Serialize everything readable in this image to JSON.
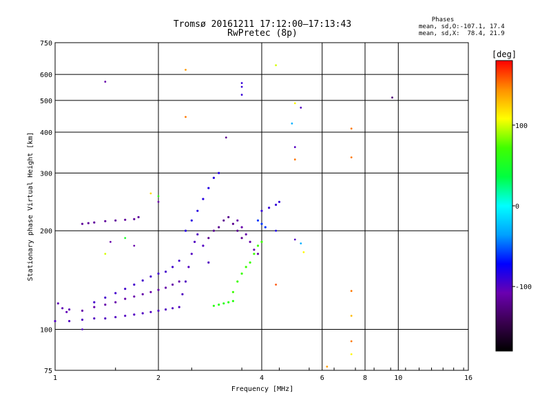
{
  "chart_data": {
    "type": "scatter",
    "title": "Tromsø 20161211 17:12:00–17:13:43",
    "subtitle": "RwPretec (8p)",
    "xlabel": "Frequency [MHz]",
    "ylabel": "Stationary phase Virtual Height [km]",
    "xscale": "log",
    "yscale": "log",
    "xlim": [
      1,
      16
    ],
    "ylim": [
      75,
      750
    ],
    "x_ticks": [
      1,
      2,
      4,
      6,
      8,
      10,
      16
    ],
    "y_ticks": [
      75,
      100,
      200,
      300,
      400,
      500,
      600,
      750
    ],
    "grid": true,
    "legend": {
      "title": "Phases",
      "line1": "mean, sd,O:-107.1, 17.4",
      "line2": "mean, sd,X:  78.4, 21.9"
    },
    "colorbar": {
      "label": "[deg]",
      "ticks": [
        100,
        0,
        -100
      ],
      "range": [
        -180,
        180
      ],
      "colors": [
        "#000000",
        "#3a0050",
        "#6a00b0",
        "#0000ff",
        "#00a0ff",
        "#00ffff",
        "#00ff40",
        "#40ff00",
        "#ffff00",
        "#ff9000",
        "#ff0000"
      ]
    },
    "traces": [
      {
        "name": "",
        "phase": -100,
        "f": [
          1.0,
          1.1,
          1.2,
          1.3,
          1.4,
          1.5,
          1.6,
          1.7,
          1.8,
          1.9,
          2.0,
          2.1,
          2.2,
          2.3
        ],
        "h": [
          106,
          106,
          107,
          108,
          108,
          109,
          110,
          111,
          112,
          113,
          114,
          115,
          116,
          117
        ]
      },
      {
        "name": "",
        "phase": -110,
        "f": [
          1.2,
          1.3,
          1.4,
          1.5,
          1.6,
          1.7,
          1.8,
          1.9,
          2.0,
          2.1,
          2.2,
          2.3
        ],
        "h": [
          114,
          117,
          119,
          121,
          124,
          126,
          128,
          130,
          132,
          134,
          137,
          140
        ]
      },
      {
        "name": "",
        "phase": -95,
        "f": [
          1.3,
          1.4,
          1.5,
          1.6,
          1.7,
          1.8,
          1.9,
          2.0,
          2.1,
          2.2,
          2.3
        ],
        "h": [
          121,
          125,
          129,
          133,
          137,
          141,
          145,
          148,
          150,
          155,
          162
        ]
      },
      {
        "name": "",
        "phase": -105,
        "f": [
          1.02,
          1.05,
          1.08,
          1.1
        ],
        "h": [
          120,
          116,
          113,
          115
        ]
      },
      {
        "name": "",
        "phase": -115,
        "f": [
          1.2,
          1.25,
          1.3,
          1.4,
          1.5,
          1.6,
          1.7,
          1.75
        ],
        "h": [
          210,
          211,
          212,
          214,
          215,
          216,
          217,
          220
        ]
      },
      {
        "name": "",
        "phase": -100,
        "f": [
          2.35,
          2.4,
          2.45,
          2.5,
          2.55,
          2.6,
          2.7,
          2.8
        ],
        "h": [
          128,
          140,
          155,
          170,
          185,
          195,
          180,
          160
        ]
      },
      {
        "name": "",
        "phase": -85,
        "f": [
          2.4,
          2.5,
          2.6,
          2.7,
          2.8,
          2.9,
          3.0
        ],
        "h": [
          200,
          215,
          230,
          250,
          270,
          290,
          300
        ]
      },
      {
        "name": "",
        "phase": -120,
        "f": [
          2.8,
          2.9,
          3.0,
          3.1,
          3.2,
          3.3,
          3.4,
          3.5
        ],
        "h": [
          190,
          200,
          205,
          215,
          220,
          210,
          200,
          190
        ]
      },
      {
        "name": "",
        "phase": -110,
        "f": [
          3.4,
          3.5,
          3.6,
          3.7,
          3.8,
          3.9
        ],
        "h": [
          215,
          205,
          195,
          185,
          175,
          170
        ]
      },
      {
        "name": "",
        "phase": 60,
        "f": [
          2.9,
          3.0,
          3.1,
          3.2,
          3.3
        ],
        "h": [
          118,
          119,
          120,
          121,
          122
        ]
      },
      {
        "name": "",
        "phase": 70,
        "f": [
          3.3,
          3.4,
          3.5,
          3.6,
          3.7,
          3.8,
          3.9,
          4.0
        ],
        "h": [
          130,
          140,
          148,
          155,
          160,
          170,
          180,
          185
        ]
      },
      {
        "name": "",
        "phase": -90,
        "f": [
          4.0,
          4.2,
          4.4,
          4.5
        ],
        "h": [
          230,
          235,
          240,
          245
        ]
      },
      {
        "name": "",
        "phase": -60,
        "f": [
          3.9,
          4.0,
          4.1
        ],
        "h": [
          215,
          210,
          205
        ]
      }
    ],
    "isolated_points": [
      {
        "f": 1.4,
        "h": 570,
        "phase": -110
      },
      {
        "f": 2.4,
        "h": 620,
        "phase": 140
      },
      {
        "f": 2.4,
        "h": 445,
        "phase": 150
      },
      {
        "f": 3.15,
        "h": 385,
        "phase": -120
      },
      {
        "f": 3.5,
        "h": 565,
        "phase": -90
      },
      {
        "f": 3.5,
        "h": 550,
        "phase": -90
      },
      {
        "f": 3.5,
        "h": 520,
        "phase": -90
      },
      {
        "f": 4.4,
        "h": 640,
        "phase": 100
      },
      {
        "f": 5.0,
        "h": 490,
        "phase": 110
      },
      {
        "f": 5.2,
        "h": 475,
        "phase": -100
      },
      {
        "f": 4.9,
        "h": 425,
        "phase": -30
      },
      {
        "f": 5.0,
        "h": 360,
        "phase": -100
      },
      {
        "f": 5.0,
        "h": 330,
        "phase": 150
      },
      {
        "f": 7.3,
        "h": 410,
        "phase": 150
      },
      {
        "f": 7.3,
        "h": 335,
        "phase": 150
      },
      {
        "f": 9.6,
        "h": 510,
        "phase": -130
      },
      {
        "f": 4.4,
        "h": 137,
        "phase": 160
      },
      {
        "f": 7.3,
        "h": 131,
        "phase": 150
      },
      {
        "f": 7.3,
        "h": 110,
        "phase": 130
      },
      {
        "f": 7.3,
        "h": 92,
        "phase": 150
      },
      {
        "f": 7.3,
        "h": 84,
        "phase": 110
      },
      {
        "f": 6.2,
        "h": 77,
        "phase": 140
      },
      {
        "f": 5.0,
        "h": 188,
        "phase": -100
      },
      {
        "f": 5.2,
        "h": 183,
        "phase": -30
      },
      {
        "f": 5.3,
        "h": 172,
        "phase": 110
      },
      {
        "f": 4.4,
        "h": 200,
        "phase": -80
      },
      {
        "f": 1.2,
        "h": 100,
        "phase": -100
      },
      {
        "f": 1.4,
        "h": 170,
        "phase": 100
      },
      {
        "f": 1.45,
        "h": 185,
        "phase": -110
      },
      {
        "f": 1.6,
        "h": 190,
        "phase": 50
      },
      {
        "f": 1.7,
        "h": 180,
        "phase": -110
      },
      {
        "f": 1.9,
        "h": 260,
        "phase": 120
      },
      {
        "f": 2.0,
        "h": 255,
        "phase": 60
      },
      {
        "f": 2.0,
        "h": 245,
        "phase": -110
      }
    ]
  }
}
